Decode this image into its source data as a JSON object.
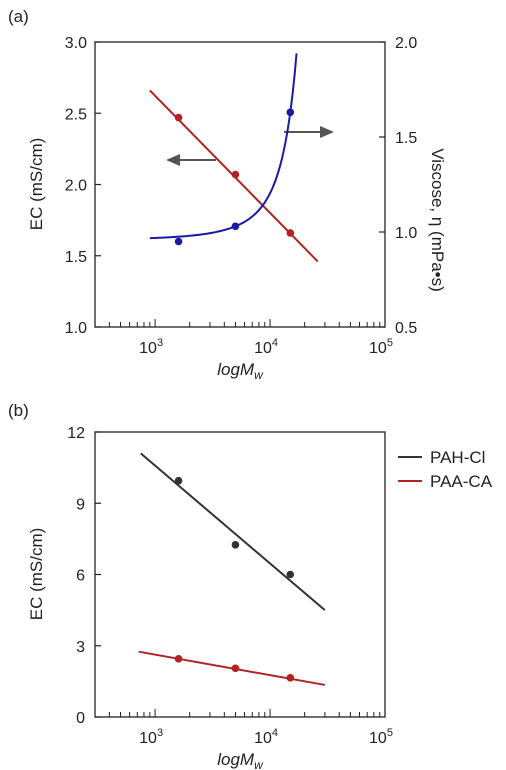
{
  "chart_data": [
    {
      "panel_label": "(a)",
      "type": "line",
      "xlabel": "logM",
      "xlabel_sub": "w",
      "x_scale": "log",
      "xlim": [
        300,
        100000
      ],
      "x_ticks": [
        {
          "value": 1000,
          "base": "10",
          "exp": "3"
        },
        {
          "value": 10000,
          "base": "10",
          "exp": "4"
        },
        {
          "value": 100000,
          "base": "10",
          "exp": "5"
        }
      ],
      "ylabel": "EC (mS/cm)",
      "ylim": [
        1.0,
        3.0
      ],
      "y_ticks": [
        "1.0",
        "1.5",
        "2.0",
        "2.5",
        "3.0"
      ],
      "ylabel_right": "Viscose, η (mPa•s)",
      "ylim_right": [
        0.5,
        2.0
      ],
      "y_ticks_right": [
        "0.5",
        "1.0",
        "1.5",
        "2.0"
      ],
      "series": [
        {
          "axis": "left",
          "color": "#b22222",
          "points": [
            {
              "x": 1600,
              "y": 2.47
            },
            {
              "x": 5000,
              "y": 2.07
            },
            {
              "x": 15000,
              "y": 1.66
            }
          ],
          "fit": {
            "x": [
              900,
              26000
            ],
            "y": [
              2.66,
              1.46
            ]
          }
        },
        {
          "axis": "right",
          "color": "#1a1aa6",
          "points": [
            {
              "x": 1600,
              "y": 0.95
            },
            {
              "x": 5000,
              "y": 1.03
            },
            {
              "x": 15000,
              "y": 1.63
            }
          ],
          "fit": {
            "x_start": 900,
            "x_end": 17000
          }
        }
      ],
      "annotations": [
        {
          "type": "arrow",
          "direction": "left",
          "points_to": "left axis"
        },
        {
          "type": "arrow",
          "direction": "right",
          "points_to": "right axis"
        }
      ]
    },
    {
      "panel_label": "(b)",
      "type": "line",
      "xlabel": "logM",
      "xlabel_sub": "w",
      "x_scale": "log",
      "xlim": [
        300,
        100000
      ],
      "x_ticks": [
        {
          "value": 1000,
          "base": "10",
          "exp": "3"
        },
        {
          "value": 10000,
          "base": "10",
          "exp": "4"
        },
        {
          "value": 100000,
          "base": "10",
          "exp": "5"
        }
      ],
      "ylabel": "EC (mS/cm)",
      "ylim": [
        0,
        12
      ],
      "y_ticks": [
        "0",
        "3",
        "6",
        "9",
        "12"
      ],
      "legend": "top-right, outside",
      "series": [
        {
          "name": "PAH-Cl",
          "color": "#333333",
          "points": [
            {
              "x": 1600,
              "y": 9.95
            },
            {
              "x": 5000,
              "y": 7.25
            },
            {
              "x": 15000,
              "y": 6.0
            }
          ],
          "fit": {
            "x": [
              750,
              30000
            ],
            "y": [
              11.1,
              4.5
            ]
          }
        },
        {
          "name": "PAA-CA",
          "color": "#b22222",
          "points": [
            {
              "x": 1600,
              "y": 2.45
            },
            {
              "x": 5000,
              "y": 2.05
            },
            {
              "x": 15000,
              "y": 1.65
            }
          ],
          "fit": {
            "x": [
              720,
              30000
            ],
            "y": [
              2.75,
              1.35
            ]
          }
        }
      ]
    }
  ]
}
